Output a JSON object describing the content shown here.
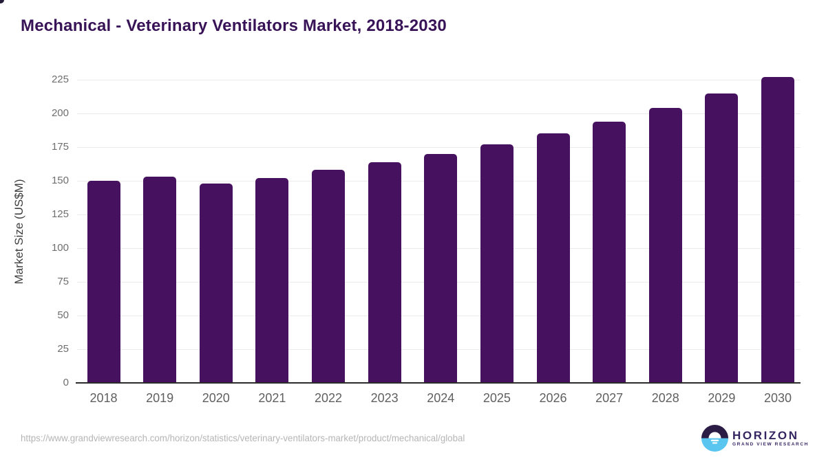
{
  "page": {
    "title": "Mechanical - Veterinary Ventilators Market, 2018-2030",
    "source_url": "https://www.grandviewresearch.com/horizon/statistics/veterinary-ventilators-market/product/mechanical/global"
  },
  "logo": {
    "name": "HORIZON",
    "subtitle": "GRAND VIEW RESEARCH",
    "icon": "horizon-sun-circle-icon",
    "icon_dark_color": "#2b1c45",
    "icon_blue_color": "#5ac6f0"
  },
  "chart_data": {
    "type": "bar",
    "title": "Mechanical - Veterinary Ventilators Market, 2018-2030",
    "categories": [
      "2018",
      "2019",
      "2020",
      "2021",
      "2022",
      "2023",
      "2024",
      "2025",
      "2026",
      "2027",
      "2028",
      "2029",
      "2030"
    ],
    "values": [
      150,
      153,
      148,
      152,
      158,
      164,
      170,
      177,
      185,
      194,
      204,
      215,
      227
    ],
    "xlabel": "",
    "ylabel": "Market Size (US$M)",
    "ylim": [
      0,
      225
    ],
    "ytick_step": 25,
    "yticks": [
      0,
      25,
      50,
      75,
      100,
      125,
      150,
      175,
      200,
      225
    ],
    "grid": "horizontal",
    "legend": "none",
    "bar_color": "#46125f",
    "gridline_color": "#ebebeb",
    "axis_line_color": "#2b2b2b",
    "tick_label_color": "#6e6e6e",
    "category_label_color": "#5f5f5f",
    "title_color": "#381357"
  }
}
